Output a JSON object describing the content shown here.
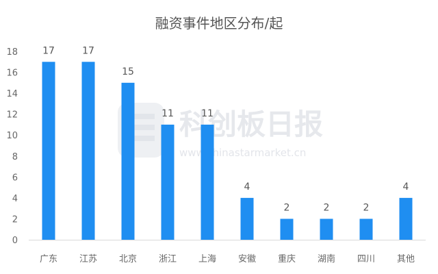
{
  "chart_data": {
    "type": "bar",
    "title": "融资事件地区分布/起",
    "categories": [
      "广东",
      "江苏",
      "北京",
      "浙江",
      "上海",
      "安徽",
      "重庆",
      "湖南",
      "四川",
      "其他"
    ],
    "values": [
      17,
      17,
      15,
      11,
      11,
      4,
      2,
      2,
      2,
      4
    ],
    "ylim": [
      0,
      18
    ],
    "yticks": [
      0,
      2,
      4,
      6,
      8,
      10,
      12,
      14,
      16,
      18
    ],
    "grid": false,
    "bar_color": "#1f8ef1",
    "data_labels": true
  },
  "watermark": {
    "name": "科创板日报",
    "url": "www.chinastarmarket.cn"
  }
}
